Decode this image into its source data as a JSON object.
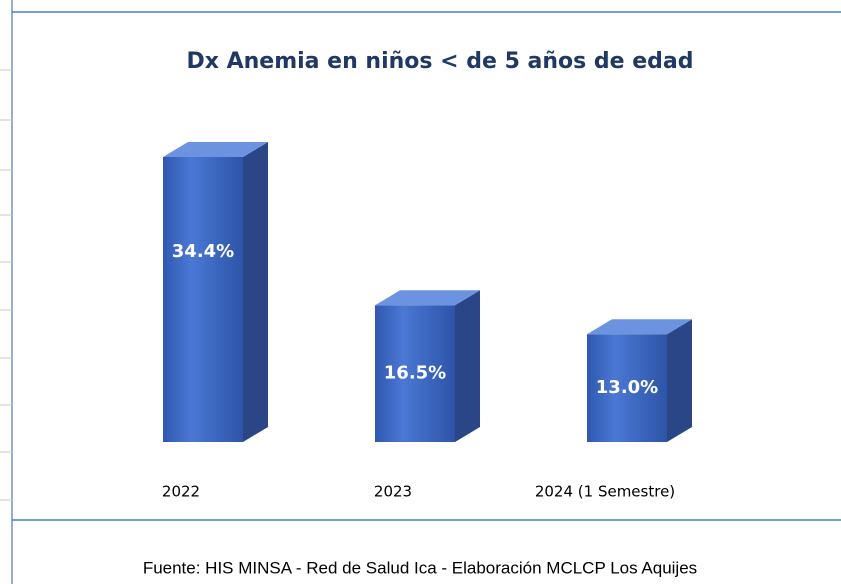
{
  "chart_data": {
    "type": "bar3d",
    "title": "Dx Anemia en niños < de 5 años de edad",
    "categories": [
      "2022",
      "2023",
      "2024 (1 Semestre)"
    ],
    "values": [
      34.4,
      16.5,
      13.0
    ],
    "value_labels": [
      "34.4%",
      "16.5%",
      "13.0%"
    ],
    "color": "#3f68c0",
    "source": "Fuente: HIS MINSA - Red de Salud Ica - Elaboración MCLCP Los Aquijes"
  }
}
